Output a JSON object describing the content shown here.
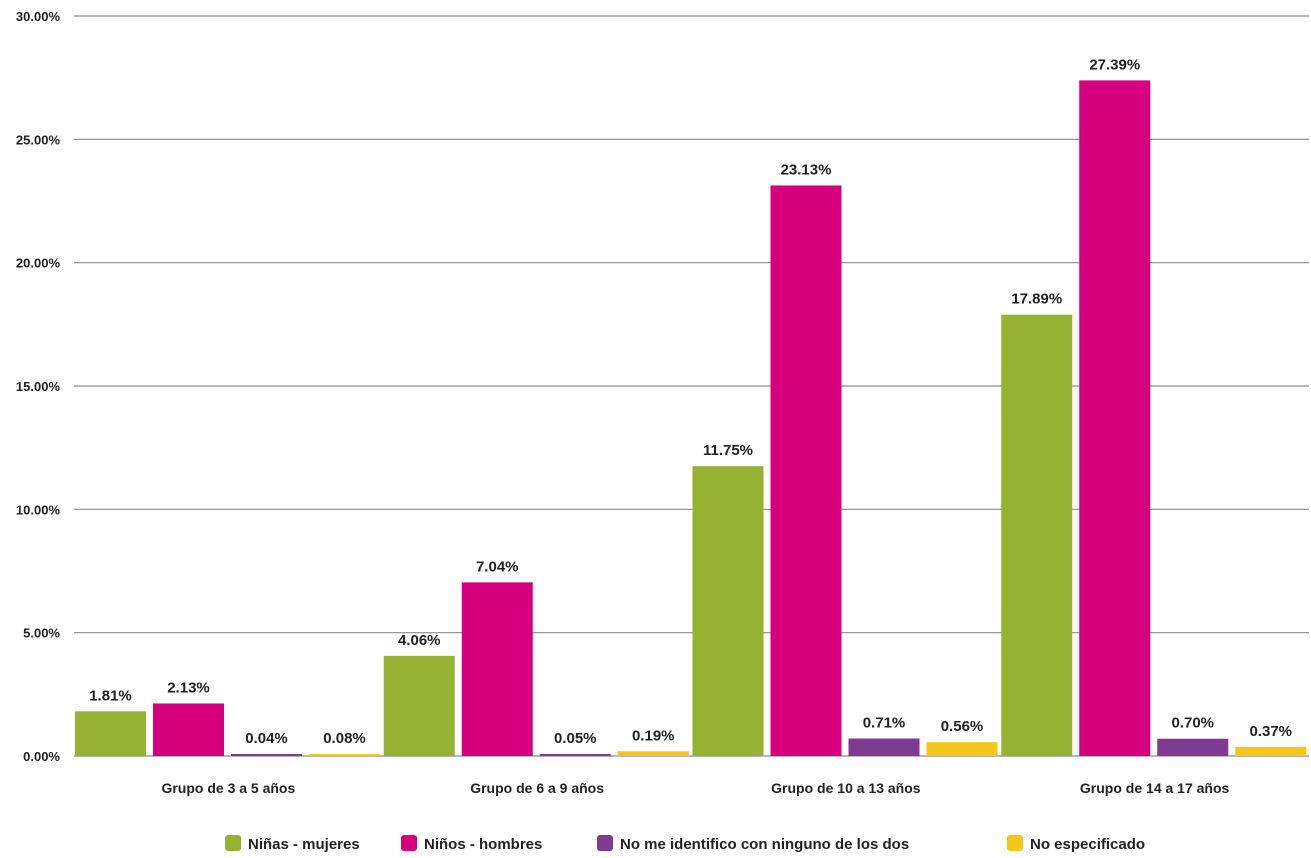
{
  "chart_data": {
    "type": "bar",
    "title": "",
    "xlabel": "",
    "ylabel": "",
    "ylim": [
      0,
      30
    ],
    "y_ticks": [
      0,
      5,
      10,
      15,
      20,
      25,
      30
    ],
    "y_tick_labels": [
      "0.00%",
      "5.00%",
      "10.00%",
      "15.00%",
      "20.00%",
      "25.00%",
      "30.00%"
    ],
    "grid": true,
    "legend_position": "bottom",
    "categories": [
      "Grupo de 3 a 5 años",
      "Grupo de 6 a 9 años",
      "Grupo de 10 a 13 años",
      "Grupo de 14 a 17 años"
    ],
    "series": [
      {
        "name": "Niñas - mujeres",
        "color": "#97b232",
        "values": [
          1.81,
          4.06,
          11.75,
          17.89
        ],
        "labels": [
          "1.81%",
          "4.06%",
          "11.75%",
          "17.89%"
        ]
      },
      {
        "name": "Niños - hombres",
        "color": "#d6007f",
        "values": [
          2.13,
          7.04,
          23.13,
          27.39
        ],
        "labels": [
          "2.13%",
          "7.04%",
          "23.13%",
          "27.39%"
        ]
      },
      {
        "name": "No me identifico con ninguno de los dos",
        "color": "#7f3a92",
        "values": [
          0.04,
          0.05,
          0.71,
          0.7
        ],
        "labels": [
          "0.04%",
          "0.05%",
          "0.71%",
          "0.70%"
        ]
      },
      {
        "name": "No especificado",
        "color": "#f5c518",
        "values": [
          0.08,
          0.19,
          0.56,
          0.37
        ],
        "labels": [
          "0.08%",
          "0.19%",
          "0.56%",
          "0.37%"
        ]
      }
    ]
  }
}
